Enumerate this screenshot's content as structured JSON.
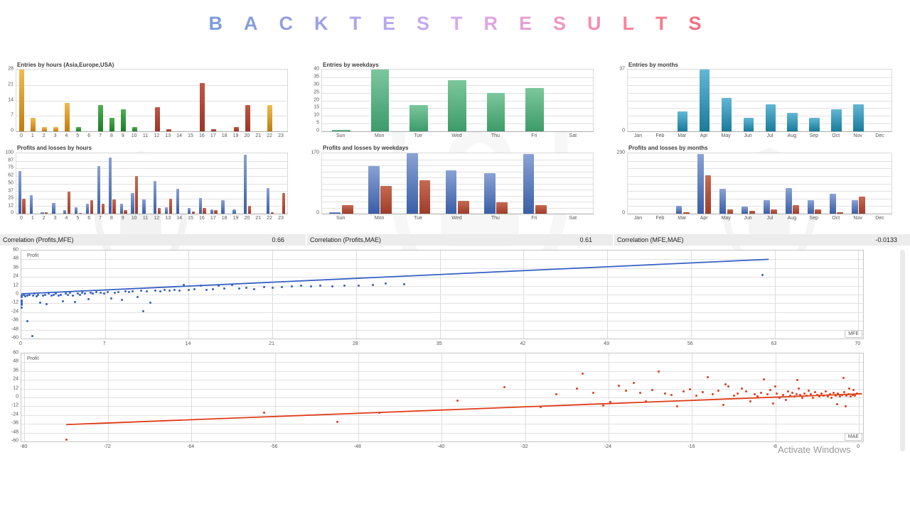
{
  "title": {
    "text": "BACKTEST RESULTS",
    "letters": [
      {
        "ch": "B",
        "color": "#7e9cda"
      },
      {
        "ch": "A",
        "color": "#879ede"
      },
      {
        "ch": "C",
        "color": "#91a0e2"
      },
      {
        "ch": "K",
        "color": "#9da2e6"
      },
      {
        "ch": "T",
        "color": "#aba6ea"
      },
      {
        "ch": "E",
        "color": "#b9a8ec"
      },
      {
        "ch": "S",
        "color": "#c6aaee"
      },
      {
        "ch": "T",
        "color": "#d4aaee"
      },
      {
        "ch": "R",
        "color": "#dfa5e4"
      },
      {
        "ch": "E",
        "color": "#e89fd4"
      },
      {
        "ch": "S",
        "color": "#ef97c2"
      },
      {
        "ch": "U",
        "color": "#f48fae"
      },
      {
        "ch": "L",
        "color": "#f6859c"
      },
      {
        "ch": "T",
        "color": "#f77b8d"
      },
      {
        "ch": "S",
        "color": "#f66f80"
      }
    ]
  },
  "colors": {
    "gold": [
      "#eebc52",
      "#c07c10"
    ],
    "green": [
      "#4fae54",
      "#1c7d28"
    ],
    "red": [
      "#c05744",
      "#9c3425"
    ],
    "teal": [
      "#62b7d4",
      "#197b9b"
    ],
    "wk_green": [
      "#7cc79c",
      "#3d9b6a"
    ],
    "pl_blue": [
      "#8aa2d4",
      "#3a5ea6"
    ],
    "pl_red": [
      "#c66a52",
      "#9e3c2a"
    ]
  },
  "correlations": [
    {
      "label": "Correlation (Profits,MFE)",
      "value": "0.66"
    },
    {
      "label": "Correlation (Profits,MAE)",
      "value": "0.61"
    },
    {
      "label": "Correlation (MFE,MAE)",
      "value": "-0.0133"
    }
  ],
  "watermark": {
    "text": "YOFOREX"
  },
  "activate_windows": {
    "line1": "Activate Windows"
  },
  "chart_data": [
    {
      "id": "entries_hours",
      "type": "bar",
      "title": "Entries by hours (Asia,Europe,USA)",
      "categories": [
        "0",
        "1",
        "2",
        "3",
        "4",
        "5",
        "6",
        "7",
        "8",
        "9",
        "10",
        "11",
        "12",
        "13",
        "14",
        "15",
        "16",
        "17",
        "18",
        "19",
        "20",
        "21",
        "22",
        "23"
      ],
      "values": [
        28,
        6,
        2,
        2,
        13,
        2,
        0,
        12,
        6,
        10,
        2,
        0,
        11,
        1,
        0,
        0,
        22,
        1,
        0,
        2,
        12,
        0,
        12,
        0
      ],
      "bar_colors": [
        "gold",
        "gold",
        "gold",
        "gold",
        "gold",
        "green",
        "green",
        "green",
        "green",
        "green",
        "green",
        "red",
        "red",
        "red",
        "red",
        "red",
        "red",
        "red",
        "red",
        "red",
        "red",
        "red",
        "gold",
        "gold"
      ],
      "ylim": [
        0,
        28
      ],
      "yticks": [
        0,
        7,
        14,
        21,
        28
      ],
      "grid_divisions": 4
    },
    {
      "id": "entries_weekdays",
      "type": "bar",
      "title": "Entries by weekdays",
      "categories": [
        "Sun",
        "Mon",
        "Tue",
        "Wed",
        "Thu",
        "Fri",
        "Sat"
      ],
      "values": [
        1,
        40,
        17,
        33,
        25,
        28,
        0
      ],
      "bar_color": "wk_green",
      "ylim": [
        0,
        40
      ],
      "yticks": [
        0,
        5,
        10,
        15,
        20,
        25,
        30,
        35,
        40
      ],
      "grid_divisions": 8
    },
    {
      "id": "entries_months",
      "type": "bar",
      "title": "Entries by months",
      "categories": [
        "Jan",
        "Feb",
        "Mar",
        "Apr",
        "May",
        "Jun",
        "Jul",
        "Aug",
        "Sep",
        "Oct",
        "Nov",
        "Dec"
      ],
      "values": [
        0,
        0,
        12,
        37,
        20,
        8,
        16,
        11,
        8,
        13,
        16,
        0
      ],
      "bar_color": "teal",
      "ylim": [
        0,
        37
      ],
      "yticks": [
        0,
        37
      ],
      "grid_divisions": 8
    },
    {
      "id": "pl_hours",
      "type": "bar",
      "title": "Profits and losses by hours",
      "categories": [
        "0",
        "1",
        "2",
        "3",
        "4",
        "5",
        "6",
        "7",
        "8",
        "9",
        "10",
        "11",
        "12",
        "13",
        "14",
        "15",
        "16",
        "17",
        "18",
        "19",
        "20",
        "21",
        "22",
        "23"
      ],
      "series": [
        {
          "name": "profits",
          "color": "pl_blue",
          "values": [
            71,
            31,
            2,
            18,
            6,
            11,
            17,
            79,
            93,
            16,
            34,
            23,
            54,
            11,
            41,
            10,
            26,
            7,
            22,
            7,
            98,
            0,
            42,
            0
          ]
        },
        {
          "name": "losses",
          "color": "pl_red",
          "values": [
            25,
            0,
            2,
            0,
            36,
            1,
            22,
            17,
            23,
            6,
            62,
            0,
            10,
            25,
            0,
            3,
            10,
            6,
            0,
            0,
            13,
            0,
            2,
            34
          ]
        }
      ],
      "ylim": [
        0,
        100
      ],
      "yticks": [
        0,
        12,
        25,
        37,
        50,
        62,
        75,
        87,
        100
      ],
      "grid_divisions": 8
    },
    {
      "id": "pl_weekdays",
      "type": "bar",
      "title": "Profits and losses by weekdays",
      "categories": [
        "Sun",
        "Mon",
        "Tue",
        "Wed",
        "Thu",
        "Fri",
        "Sat"
      ],
      "series": [
        {
          "name": "profits",
          "color": "pl_blue",
          "values": [
            5,
            135,
            170,
            122,
            115,
            168,
            0
          ]
        },
        {
          "name": "losses",
          "color": "pl_red",
          "values": [
            25,
            78,
            95,
            37,
            33,
            25,
            0
          ]
        }
      ],
      "ylim": [
        0,
        170
      ],
      "yticks": [
        0,
        170
      ],
      "grid_divisions": 10
    },
    {
      "id": "pl_months",
      "type": "bar",
      "title": "Profits and losses by months",
      "categories": [
        "Jan",
        "Feb",
        "Mar",
        "Apr",
        "May",
        "Jun",
        "Jul",
        "Aug",
        "Sep",
        "Oct",
        "Nov",
        "Dec"
      ],
      "series": [
        {
          "name": "profits",
          "color": "pl_blue",
          "values": [
            0,
            0,
            30,
            228,
            95,
            28,
            52,
            97,
            52,
            75,
            52,
            0
          ]
        },
        {
          "name": "losses",
          "color": "pl_red",
          "values": [
            0,
            0,
            5,
            145,
            15,
            12,
            15,
            32,
            15,
            5,
            65,
            0
          ]
        }
      ],
      "ylim": [
        0,
        230
      ],
      "yticks": [
        0,
        230
      ],
      "grid_divisions": 8
    },
    {
      "id": "mfe_scatter",
      "type": "scatter",
      "ylabel": "Profit",
      "xlabel": "MFE",
      "color": "#3560c4",
      "xlim": [
        0,
        70.4
      ],
      "ylim": [
        -60,
        60
      ],
      "xticks": [
        0,
        7,
        14,
        21,
        28,
        35,
        42,
        49,
        56,
        63,
        70
      ],
      "yticks": [
        60,
        48,
        36,
        24,
        12,
        0,
        -12,
        -24,
        -36,
        -48,
        -60
      ],
      "trend": [
        [
          0,
          1
        ],
        [
          62.5,
          48
        ]
      ],
      "points": [
        [
          0,
          -1
        ],
        [
          0,
          -3
        ],
        [
          0,
          -8
        ],
        [
          0,
          -10
        ],
        [
          0,
          -12
        ],
        [
          0,
          -14
        ],
        [
          0,
          -18
        ],
        [
          0.2,
          0
        ],
        [
          0.3,
          -2
        ],
        [
          0.5,
          -36
        ],
        [
          0.5,
          -1
        ],
        [
          0.7,
          0
        ],
        [
          0.9,
          -57
        ],
        [
          1,
          -1
        ],
        [
          1.1,
          1
        ],
        [
          1.3,
          -2
        ],
        [
          1.4,
          0
        ],
        [
          1.6,
          -11
        ],
        [
          1.8,
          -1
        ],
        [
          2,
          0
        ],
        [
          2.1,
          -13
        ],
        [
          2.3,
          1
        ],
        [
          2.5,
          -1
        ],
        [
          2.7,
          0
        ],
        [
          2.9,
          1
        ],
        [
          3.1,
          -1
        ],
        [
          3.3,
          0
        ],
        [
          3.5,
          -9
        ],
        [
          3.7,
          1
        ],
        [
          3.9,
          0
        ],
        [
          4.1,
          2
        ],
        [
          4.3,
          -1
        ],
        [
          4.5,
          -10
        ],
        [
          4.7,
          1
        ],
        [
          4.9,
          0
        ],
        [
          5.1,
          2
        ],
        [
          5.3,
          1
        ],
        [
          5.6,
          -6
        ],
        [
          5.8,
          2
        ],
        [
          6,
          1
        ],
        [
          6.3,
          3
        ],
        [
          6.6,
          2
        ],
        [
          6.9,
          1
        ],
        [
          7.2,
          3
        ],
        [
          7.5,
          -5
        ],
        [
          7.8,
          2
        ],
        [
          8.1,
          3
        ],
        [
          8.4,
          -7
        ],
        [
          8.7,
          4
        ],
        [
          9,
          3
        ],
        [
          9.3,
          4
        ],
        [
          9.7,
          -3
        ],
        [
          10,
          5
        ],
        [
          10.2,
          -23
        ],
        [
          10.5,
          4
        ],
        [
          10.8,
          -11
        ],
        [
          11.2,
          5
        ],
        [
          11.6,
          4
        ],
        [
          12,
          6
        ],
        [
          12.4,
          5
        ],
        [
          12.8,
          6
        ],
        [
          13.2,
          5
        ],
        [
          13.6,
          13
        ],
        [
          14,
          6
        ],
        [
          14.5,
          7
        ],
        [
          15,
          12
        ],
        [
          15.5,
          6
        ],
        [
          16,
          7
        ],
        [
          16.5,
          12
        ],
        [
          17,
          8
        ],
        [
          17.6,
          13
        ],
        [
          18.2,
          8
        ],
        [
          18.8,
          9
        ],
        [
          19.5,
          7
        ],
        [
          20.3,
          10
        ],
        [
          21,
          9
        ],
        [
          21.8,
          10
        ],
        [
          22.6,
          11
        ],
        [
          23.4,
          12
        ],
        [
          24.2,
          11
        ],
        [
          25,
          12
        ],
        [
          26,
          11
        ],
        [
          27,
          12
        ],
        [
          28.2,
          12
        ],
        [
          29.4,
          13
        ],
        [
          30.5,
          15
        ],
        [
          32,
          14
        ],
        [
          62,
          27
        ]
      ]
    },
    {
      "id": "mae_scatter",
      "type": "scatter",
      "ylabel": "Profit",
      "xlabel": "MAE",
      "color": "#e03c17",
      "xlim": [
        -80.3,
        0.4
      ],
      "ylim": [
        -60,
        60
      ],
      "xticks": [
        -80,
        -72,
        -64,
        -56,
        -48,
        -40,
        -32,
        -24,
        -16,
        -8,
        0
      ],
      "yticks": [
        60,
        48,
        36,
        24,
        12,
        0,
        -12,
        -24,
        -36,
        -48,
        -60
      ],
      "trend": [
        [
          -76,
          -37
        ],
        [
          0.3,
          5
        ]
      ],
      "points": [
        [
          -76,
          -58
        ],
        [
          -57,
          -21
        ],
        [
          -50,
          -33
        ],
        [
          -46,
          -21
        ],
        [
          -38.5,
          -4
        ],
        [
          -34,
          14
        ],
        [
          -30.5,
          -13
        ],
        [
          -29,
          4
        ],
        [
          -27,
          12
        ],
        [
          -26.5,
          32
        ],
        [
          -25.5,
          6
        ],
        [
          -24.5,
          -11
        ],
        [
          -23.8,
          -6
        ],
        [
          -23,
          16
        ],
        [
          -22.3,
          9
        ],
        [
          -21.6,
          20
        ],
        [
          -21,
          6
        ],
        [
          -20.4,
          -5
        ],
        [
          -19.8,
          10
        ],
        [
          -19.2,
          35
        ],
        [
          -18.6,
          5
        ],
        [
          -18,
          3
        ],
        [
          -17.4,
          -12
        ],
        [
          -16.8,
          8
        ],
        [
          -16.2,
          11
        ],
        [
          -15.6,
          2
        ],
        [
          -15,
          7
        ],
        [
          -14.5,
          28
        ],
        [
          -14,
          4
        ],
        [
          -13.5,
          9
        ],
        [
          -13,
          -10
        ],
        [
          -12.8,
          18
        ],
        [
          -12.5,
          15
        ],
        [
          -12,
          2
        ],
        [
          -11.6,
          5
        ],
        [
          -11.2,
          12
        ],
        [
          -10.8,
          8
        ],
        [
          -10.4,
          -5
        ],
        [
          -10,
          4
        ],
        [
          -9.7,
          1
        ],
        [
          -9.4,
          6
        ],
        [
          -9.1,
          25
        ],
        [
          -8.8,
          4
        ],
        [
          -8.5,
          10
        ],
        [
          -8.2,
          -8
        ],
        [
          -8,
          15
        ],
        [
          -7.9,
          5
        ],
        [
          -7.6,
          0
        ],
        [
          -7.3,
          3
        ],
        [
          -7,
          -3
        ],
        [
          -6.8,
          8
        ],
        [
          -6.6,
          2
        ],
        [
          -6.4,
          6
        ],
        [
          -6.2,
          1
        ],
        [
          -6,
          4
        ],
        [
          -5.9,
          24
        ],
        [
          -5.8,
          12
        ],
        [
          -5.6,
          3
        ],
        [
          -5.4,
          0
        ],
        [
          -5.2,
          5
        ],
        [
          -5,
          2
        ],
        [
          -4.8,
          9
        ],
        [
          -4.6,
          4
        ],
        [
          -4.4,
          0
        ],
        [
          -4.2,
          7
        ],
        [
          -4,
          3
        ],
        [
          -3.8,
          1
        ],
        [
          -3.6,
          5
        ],
        [
          -3.4,
          2
        ],
        [
          -3.2,
          8
        ],
        [
          -3,
          1
        ],
        [
          -2.8,
          4
        ],
        [
          -2.6,
          0
        ],
        [
          -2.4,
          6
        ],
        [
          -2.2,
          2
        ],
        [
          -2.1,
          -9
        ],
        [
          -2,
          5
        ],
        [
          -1.8,
          1
        ],
        [
          -1.6,
          3
        ],
        [
          -1.5,
          27
        ],
        [
          -1.4,
          7
        ],
        [
          -1.3,
          -12
        ],
        [
          -1.2,
          2
        ],
        [
          -1,
          4
        ],
        [
          -0.9,
          12
        ],
        [
          -0.8,
          1
        ],
        [
          -0.6,
          3
        ],
        [
          -0.5,
          10
        ],
        [
          -0.4,
          2
        ],
        [
          -0.2,
          5
        ]
      ]
    }
  ]
}
